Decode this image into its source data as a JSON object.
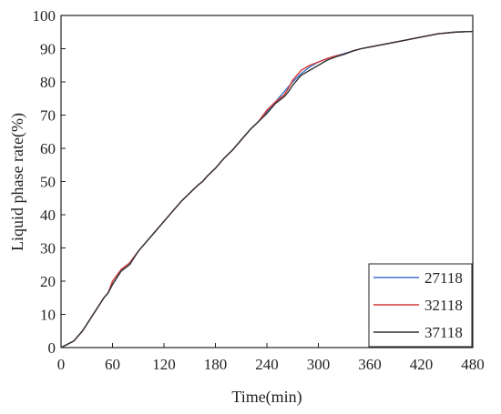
{
  "chart_data": {
    "type": "line",
    "title": "",
    "xlabel": "Time(min)",
    "ylabel": "Liquid phase rate(%)",
    "xlim": [
      0,
      480
    ],
    "ylim": [
      0,
      100
    ],
    "xticks": [
      0,
      60,
      120,
      180,
      240,
      300,
      360,
      420,
      480
    ],
    "yticks": [
      0,
      10,
      20,
      30,
      40,
      50,
      60,
      70,
      80,
      90,
      100
    ],
    "grid": false,
    "legend_position": "bottom-right",
    "series": [
      {
        "name": "27118",
        "color": "#3a73c6",
        "x": [
          0,
          15,
          25,
          30,
          40,
          50,
          55,
          60,
          70,
          80,
          90,
          100,
          110,
          120,
          130,
          140,
          150,
          160,
          165,
          170,
          180,
          190,
          200,
          210,
          220,
          230,
          240,
          250,
          260,
          265,
          270,
          280,
          290,
          300,
          310,
          320,
          330,
          340,
          350,
          360,
          380,
          400,
          420,
          440,
          460,
          480
        ],
        "y": [
          0,
          2,
          5,
          7,
          11,
          15,
          16.5,
          19,
          23,
          25,
          29,
          32,
          35,
          38,
          41,
          44,
          46.5,
          49,
          50,
          51.5,
          54,
          57,
          59.5,
          62.5,
          65.5,
          68,
          71,
          74,
          77,
          78.5,
          80,
          82.5,
          84.5,
          86,
          87,
          87.8,
          88.5,
          89.3,
          90,
          90.5,
          91.5,
          92.5,
          93.5,
          94.5,
          95,
          95.2
        ]
      },
      {
        "name": "32118",
        "color": "#d43a3a",
        "x": [
          0,
          15,
          25,
          30,
          40,
          50,
          55,
          60,
          70,
          80,
          90,
          100,
          110,
          120,
          130,
          140,
          150,
          160,
          165,
          170,
          180,
          190,
          200,
          210,
          220,
          230,
          240,
          250,
          260,
          265,
          270,
          280,
          290,
          300,
          310,
          320,
          330,
          340,
          350,
          360,
          380,
          400,
          420,
          440,
          460,
          480
        ],
        "y": [
          0,
          2,
          5,
          7,
          11,
          15,
          16.5,
          20,
          23.5,
          25.5,
          29,
          32,
          35,
          38,
          41,
          44,
          46.5,
          49,
          50,
          51.5,
          54,
          57,
          59.5,
          62.5,
          65.5,
          68,
          71.5,
          74,
          76,
          78,
          80.5,
          83.5,
          85,
          86,
          87,
          87.8,
          88.3,
          89.3,
          90,
          90.5,
          91.5,
          92.5,
          93.5,
          94.5,
          95,
          95.2
        ]
      },
      {
        "name": "37118",
        "color": "#333333",
        "x": [
          0,
          15,
          25,
          30,
          40,
          50,
          55,
          60,
          70,
          80,
          90,
          100,
          110,
          120,
          130,
          140,
          150,
          160,
          165,
          170,
          180,
          190,
          200,
          210,
          220,
          230,
          240,
          250,
          260,
          265,
          270,
          280,
          290,
          300,
          310,
          320,
          330,
          340,
          350,
          360,
          380,
          400,
          420,
          440,
          460,
          480
        ],
        "y": [
          0,
          2,
          5,
          7,
          11,
          15,
          16.5,
          19,
          23,
          25,
          29,
          32,
          35,
          38,
          41,
          44,
          46.5,
          49,
          50,
          51.5,
          54,
          57,
          59.5,
          62.5,
          65.5,
          68,
          70.5,
          73.5,
          75.5,
          77,
          79,
          82,
          83.5,
          85,
          86.5,
          87.5,
          88.3,
          89.3,
          90,
          90.5,
          91.5,
          92.5,
          93.5,
          94.5,
          95,
          95.2
        ]
      }
    ]
  }
}
